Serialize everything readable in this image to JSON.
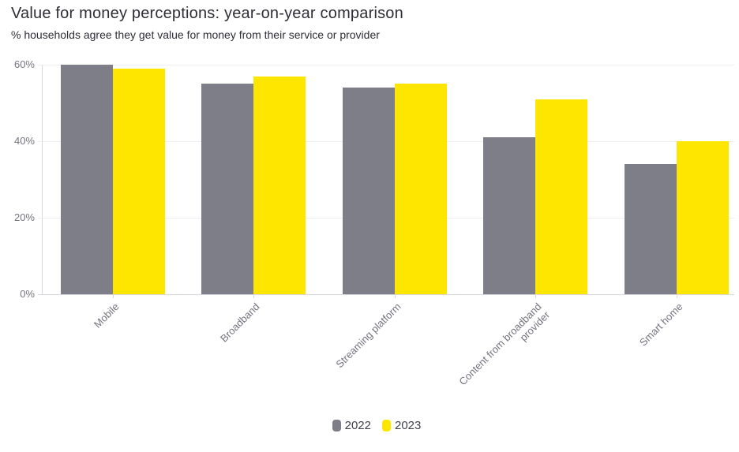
{
  "chart_data": {
    "type": "bar",
    "title": "Value for money perceptions: year-on-year comparison",
    "subtitle": "% households agree they get value for money from their service or provider",
    "unit": "%",
    "categories": [
      "Mobile",
      "Broadband",
      "Streaming platform",
      "Content from broadband provider",
      "Smart home"
    ],
    "series": [
      {
        "name": "2022",
        "color": "#7e7e88",
        "values": [
          60,
          55,
          54,
          41,
          34
        ]
      },
      {
        "name": "2023",
        "color": "#ffe600",
        "values": [
          59,
          57,
          55,
          51,
          40
        ]
      }
    ],
    "xlabel": "",
    "ylabel": "",
    "ylim": [
      0,
      60
    ],
    "y_ticks": [
      {
        "label": "0%",
        "value": 0
      },
      {
        "label": "20%",
        "value": 20
      },
      {
        "label": "40%",
        "value": 40
      },
      {
        "label": "60%",
        "value": 60
      }
    ],
    "grid": true,
    "legend_position": "bottom"
  },
  "colors": {
    "title_text": "#2e2e38",
    "axis_text": "#747480",
    "gridline": "#eeeef2",
    "axis_line": "#d6d6dc",
    "legend_text": "#40404a",
    "background": "#ffffff"
  }
}
